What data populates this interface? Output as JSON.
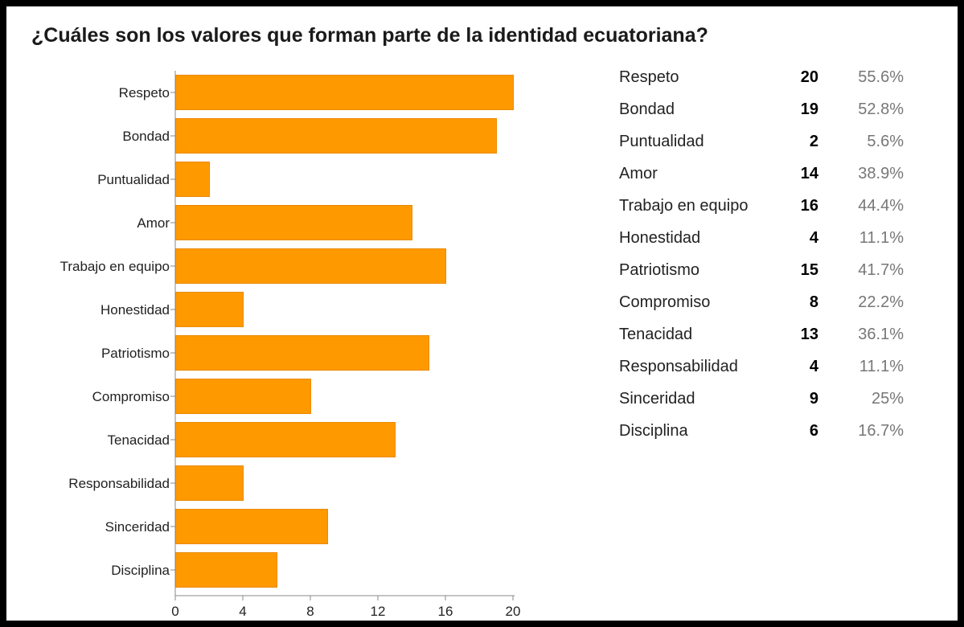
{
  "title": "¿Cuáles son los valores que forman parte de la identidad ecuatoriana?",
  "colors": {
    "bar": "#ff9900",
    "bar_edge": "#e88a00",
    "axis": "#888888"
  },
  "chart_data": {
    "type": "bar",
    "orientation": "horizontal",
    "title": "¿Cuáles son los valores que forman parte de la identidad ecuatoriana?",
    "categories": [
      "Respeto",
      "Bondad",
      "Puntualidad",
      "Amor",
      "Trabajo en equipo",
      "Honestidad",
      "Patriotismo",
      "Compromiso",
      "Tenacidad",
      "Responsabilidad",
      "Sinceridad",
      "Disciplina"
    ],
    "values": [
      20,
      19,
      2,
      14,
      16,
      4,
      15,
      8,
      13,
      4,
      9,
      6
    ],
    "xlim": [
      0,
      20
    ],
    "xticks": [
      "0",
      "4",
      "8",
      "12",
      "16",
      "20"
    ],
    "xlabel": "",
    "ylabel": "",
    "grid": false
  },
  "summary": {
    "rows": [
      {
        "label": "Respeto",
        "count": "20",
        "percent": "55.6%"
      },
      {
        "label": "Bondad",
        "count": "19",
        "percent": "52.8%"
      },
      {
        "label": "Puntualidad",
        "count": "2",
        "percent": "5.6%"
      },
      {
        "label": "Amor",
        "count": "14",
        "percent": "38.9%"
      },
      {
        "label": "Trabajo en equipo",
        "count": "16",
        "percent": "44.4%"
      },
      {
        "label": "Honestidad",
        "count": "4",
        "percent": "11.1%"
      },
      {
        "label": "Patriotismo",
        "count": "15",
        "percent": "41.7%"
      },
      {
        "label": "Compromiso",
        "count": "8",
        "percent": "22.2%"
      },
      {
        "label": "Tenacidad",
        "count": "13",
        "percent": "36.1%"
      },
      {
        "label": "Responsabilidad",
        "count": "4",
        "percent": "11.1%"
      },
      {
        "label": "Sinceridad",
        "count": "9",
        "percent": "25%"
      },
      {
        "label": "Disciplina",
        "count": "6",
        "percent": "16.7%"
      }
    ]
  }
}
